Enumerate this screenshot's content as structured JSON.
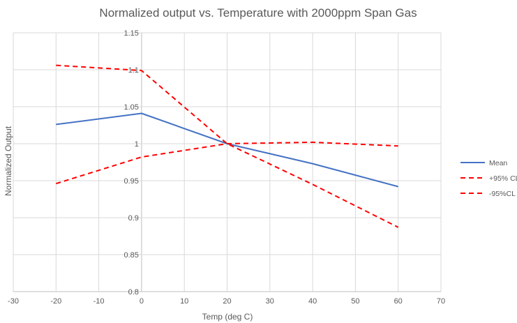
{
  "chart_data": {
    "type": "line",
    "title": "Normalized output vs. Temperature with 2000ppm Span Gas",
    "xlabel": "Temp (deg C)",
    "ylabel": "Normalized Output",
    "xlim": [
      -30,
      70
    ],
    "ylim": [
      0.8,
      1.15
    ],
    "x_ticks": [
      -30,
      -20,
      -10,
      0,
      10,
      20,
      30,
      40,
      50,
      60,
      70
    ],
    "y_ticks": [
      0.8,
      0.85,
      0.9,
      0.95,
      1,
      1.05,
      1.1,
      1.15
    ],
    "x_tick_labels": [
      "-30",
      "-20",
      "-10",
      "0",
      "10",
      "20",
      "30",
      "40",
      "50",
      "60",
      "70"
    ],
    "y_tick_labels": [
      "0.8",
      "0.85",
      "0.9",
      "0.95",
      "1",
      "1.05",
      "1.1",
      "1.15"
    ],
    "grid": true,
    "legend_position": "right",
    "x": [
      -20,
      0,
      20,
      40,
      60
    ],
    "series": [
      {
        "name": "Mean",
        "values": [
          1.026,
          1.041,
          1.0,
          0.973,
          0.942
        ],
        "color": "#4472C4",
        "style": "solid"
      },
      {
        "name": "+95% CL",
        "values": [
          1.106,
          1.099,
          1.0,
          0.945,
          0.887
        ],
        "color": "#FF0000",
        "style": "dashed"
      },
      {
        "name": "-95%CL",
        "values": [
          0.946,
          0.982,
          1.0,
          1.002,
          0.997
        ],
        "color": "#FF0000",
        "style": "dashed"
      }
    ]
  }
}
